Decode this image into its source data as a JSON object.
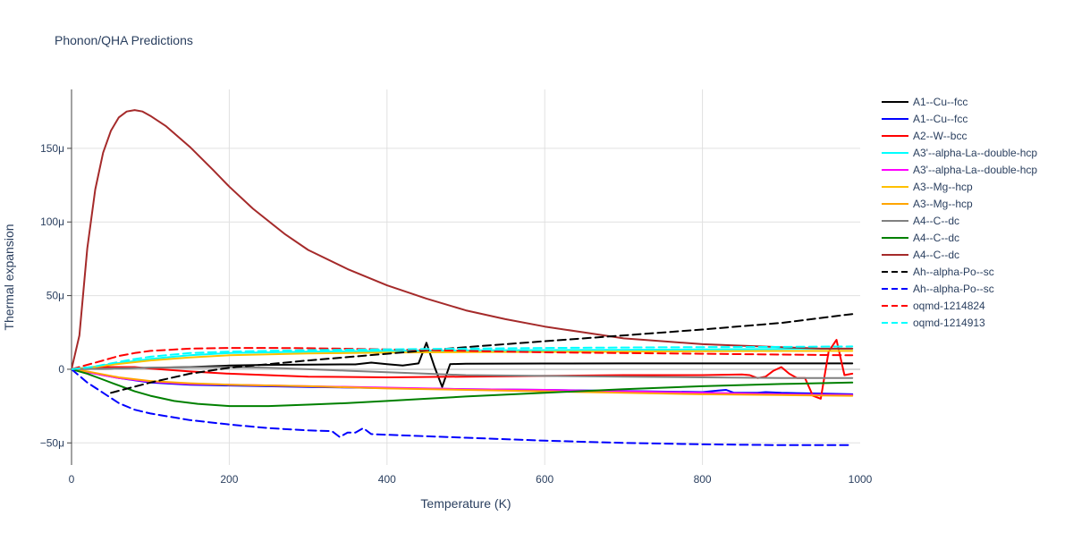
{
  "chart_data": {
    "type": "line",
    "title": "Phonon/QHA Predictions",
    "xlabel": "Temperature (K)",
    "ylabel": "Thermal expansion",
    "xlim": [
      0,
      1000
    ],
    "ylim": [
      -65,
      190
    ],
    "x_ticks": [
      {
        "value": 0,
        "label": "0"
      },
      {
        "value": 200,
        "label": "200"
      },
      {
        "value": 400,
        "label": "400"
      },
      {
        "value": 600,
        "label": "600"
      },
      {
        "value": 800,
        "label": "800"
      },
      {
        "value": 1000,
        "label": "1000"
      }
    ],
    "y_ticks": [
      {
        "value": -50,
        "label": "−50μ"
      },
      {
        "value": 0,
        "label": "0"
      },
      {
        "value": 50,
        "label": "50μ"
      },
      {
        "value": 100,
        "label": "100μ"
      },
      {
        "value": 150,
        "label": "150μ"
      }
    ],
    "y_unit": "μ (1e-6 /K)",
    "grid": true,
    "legend_position": "right",
    "series": [
      {
        "name": "A1--Cu--fcc",
        "color": "#000000",
        "dash": "solid",
        "x": [
          0,
          50,
          100,
          150,
          200,
          250,
          300,
          360,
          380,
          400,
          420,
          440,
          450,
          460,
          470,
          480,
          500,
          600,
          700,
          800,
          900,
          990
        ],
        "y": [
          0,
          0.5,
          1,
          1.5,
          2.5,
          3,
          3.2,
          3.3,
          4.5,
          3.5,
          2.5,
          4,
          18,
          2,
          -12,
          3.5,
          3.8,
          3.9,
          4,
          4,
          4,
          4
        ]
      },
      {
        "name": "A1--Cu--fcc",
        "color": "#0000ff",
        "dash": "solid",
        "x": [
          0,
          20,
          40,
          60,
          100,
          150,
          200,
          300,
          400,
          500,
          600,
          700,
          800,
          820,
          830,
          840,
          870,
          880,
          900,
          950,
          990
        ],
        "y": [
          0,
          -2,
          -4,
          -6,
          -9,
          -10.5,
          -11,
          -12,
          -12.8,
          -13.5,
          -14,
          -14.8,
          -15.5,
          -14.5,
          -14,
          -16,
          -16,
          -15.5,
          -16,
          -16.5,
          -17
        ]
      },
      {
        "name": "A2--W--bcc",
        "color": "#ff0000",
        "dash": "solid",
        "x": [
          0,
          20,
          40,
          80,
          100,
          150,
          200,
          300,
          400,
          500,
          600,
          700,
          800,
          850,
          860,
          870,
          880,
          890,
          900,
          910,
          920,
          930,
          940,
          950,
          960,
          970,
          980,
          990
        ],
        "y": [
          0,
          1,
          1.5,
          1.5,
          0.5,
          -1.5,
          -3,
          -5,
          -5.5,
          -5,
          -4.5,
          -4,
          -4,
          -3.5,
          -4,
          -6,
          -5,
          -1,
          1.5,
          -3,
          -6,
          -6,
          -18,
          -20,
          12,
          20,
          -4,
          -3
        ]
      },
      {
        "name": "A3'--alpha-La--double-hcp",
        "color": "#00ffff",
        "dash": "solid",
        "x": [
          0,
          25,
          50,
          100,
          150,
          200,
          300,
          400,
          500,
          600,
          700,
          800,
          900,
          990
        ],
        "y": [
          0,
          1.5,
          3.5,
          7,
          9.5,
          11,
          12,
          12.5,
          12.8,
          13,
          13.2,
          13.5,
          13.8,
          14
        ]
      },
      {
        "name": "A3'--alpha-La--double-hcp",
        "color": "#ff00ff",
        "dash": "solid",
        "x": [
          0,
          20,
          40,
          60,
          100,
          150,
          200,
          300,
          400,
          500,
          600,
          700,
          800,
          900,
          990
        ],
        "y": [
          0,
          -2,
          -4,
          -6,
          -8.5,
          -10,
          -10.5,
          -11.5,
          -12.5,
          -13.5,
          -14,
          -15,
          -16,
          -17,
          -17.5
        ]
      },
      {
        "name": "A3--Mg--hcp",
        "color": "#ffc000",
        "dash": "solid",
        "x": [
          0,
          25,
          50,
          100,
          150,
          200,
          300,
          400,
          500,
          600,
          700,
          800,
          900,
          990
        ],
        "y": [
          0,
          1.2,
          3,
          6,
          8,
          9.5,
          10.8,
          11.3,
          11.6,
          11.8,
          12,
          12.2,
          12.4,
          12.5
        ]
      },
      {
        "name": "A3--Mg--hcp",
        "color": "#ffa500",
        "dash": "solid",
        "x": [
          0,
          20,
          40,
          60,
          100,
          150,
          200,
          300,
          400,
          500,
          600,
          700,
          800,
          900,
          990
        ],
        "y": [
          0,
          -1.5,
          -3.5,
          -5.5,
          -8,
          -9.5,
          -10.5,
          -11.5,
          -13,
          -14,
          -15,
          -16,
          -17,
          -17.5,
          -18
        ]
      },
      {
        "name": "A4--C--dc",
        "color": "#808080",
        "dash": "solid",
        "x": [
          0,
          50,
          100,
          150,
          200,
          250,
          300,
          350,
          400,
          450,
          500,
          600,
          700,
          800,
          900,
          990
        ],
        "y": [
          0,
          0.5,
          1,
          1.3,
          1.5,
          1,
          0,
          -1,
          -2,
          -3,
          -4,
          -4.5,
          -5,
          -5.5,
          -6,
          -6
        ]
      },
      {
        "name": "A4--C--dc",
        "color": "#008000",
        "dash": "solid",
        "x": [
          0,
          20,
          40,
          60,
          80,
          100,
          130,
          160,
          200,
          250,
          300,
          350,
          400,
          450,
          500,
          600,
          700,
          800,
          900,
          990
        ],
        "y": [
          0,
          -3,
          -7,
          -11,
          -15,
          -18,
          -21.5,
          -23.5,
          -25,
          -25,
          -24,
          -23,
          -21.5,
          -20,
          -18.5,
          -16,
          -13.5,
          -11.5,
          -10,
          -9
        ]
      },
      {
        "name": "A4--C--dc",
        "color": "#a52a2a",
        "dash": "solid",
        "x": [
          0,
          10,
          20,
          30,
          40,
          50,
          60,
          70,
          80,
          90,
          100,
          120,
          150,
          180,
          200,
          230,
          270,
          300,
          350,
          400,
          450,
          500,
          550,
          600,
          650,
          700,
          750,
          800,
          850,
          900,
          950,
          990
        ],
        "y": [
          0,
          23,
          82,
          122,
          147,
          162,
          171,
          175,
          176,
          175,
          172,
          165,
          151,
          135,
          124,
          109,
          92,
          81,
          68,
          57,
          48,
          40,
          34,
          29,
          25,
          21,
          19,
          17,
          16,
          15,
          14,
          14
        ]
      },
      {
        "name": "Ah--alpha-Po--sc",
        "color": "#000000",
        "dash": "dash",
        "x": [
          50,
          100,
          150,
          200,
          300,
          400,
          500,
          600,
          700,
          800,
          900,
          990
        ],
        "y": [
          -16,
          -9,
          -3,
          1,
          6,
          10.5,
          15,
          19,
          23,
          27,
          31.5,
          37.5
        ]
      },
      {
        "name": "Ah--alpha-Po--sc",
        "color": "#0000ff",
        "dash": "dash",
        "x": [
          0,
          20,
          40,
          60,
          80,
          100,
          150,
          200,
          250,
          300,
          330,
          340,
          350,
          360,
          370,
          380,
          400,
          500,
          600,
          700,
          800,
          900,
          990
        ],
        "y": [
          0,
          -9,
          -16,
          -23,
          -27.5,
          -30,
          -34.5,
          -37.5,
          -40,
          -41.5,
          -42,
          -46,
          -43,
          -43,
          -40,
          -44,
          -44.5,
          -46.5,
          -48.5,
          -50,
          -51,
          -51.5,
          -51.5
        ]
      },
      {
        "name": "oqmd-1214824",
        "color": "#ff0000",
        "dash": "dash",
        "x": [
          0,
          20,
          40,
          60,
          80,
          100,
          150,
          200,
          250,
          300,
          400,
          500,
          600,
          700,
          800,
          900,
          990
        ],
        "y": [
          0,
          3,
          6,
          9,
          11,
          12.5,
          14,
          14.5,
          14.5,
          14.3,
          13.5,
          12.5,
          11.5,
          11,
          10.5,
          10,
          9.5
        ]
      },
      {
        "name": "oqmd-1214913",
        "color": "#00ffff",
        "dash": "dash",
        "x": [
          0,
          25,
          50,
          75,
          100,
          150,
          200,
          300,
          400,
          500,
          600,
          700,
          800,
          900,
          990
        ],
        "y": [
          0,
          1.5,
          4,
          6.5,
          8.5,
          11,
          12,
          13,
          13.5,
          14,
          14.5,
          14.8,
          15,
          15.2,
          15.5
        ]
      }
    ]
  }
}
